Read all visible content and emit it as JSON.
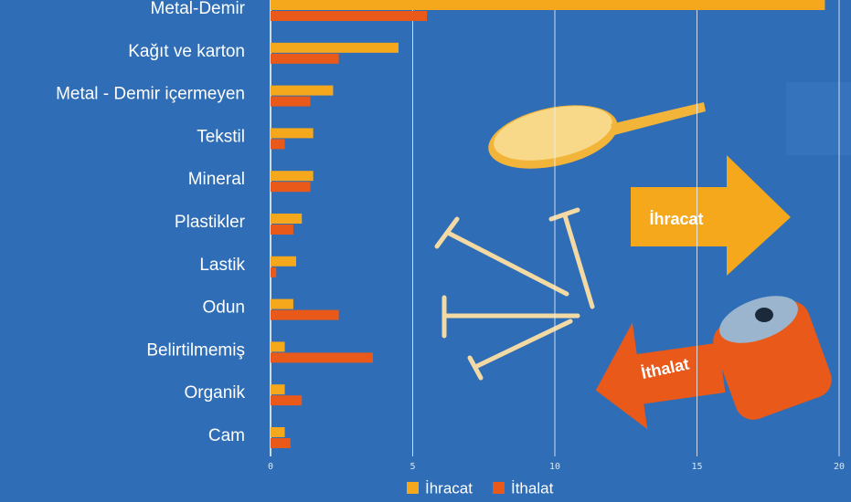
{
  "chart_data": {
    "type": "hbar",
    "categories": [
      "Metal-Demir",
      "Kağıt ve karton",
      "Metal - Demir içermeyen",
      "Tekstil",
      "Mineral",
      "Plastikler",
      "Lastik",
      "Odun",
      "Belirtilmemiş",
      "Organik",
      "Cam"
    ],
    "series": [
      {
        "name": "İhracat",
        "color": "#f5a81c",
        "values": [
          19.5,
          4.5,
          2.2,
          1.5,
          1.5,
          1.1,
          0.9,
          0.8,
          0.5,
          0.5,
          0.5
        ]
      },
      {
        "name": "İthalat",
        "color": "#e8591a",
        "values": [
          5.5,
          2.4,
          1.4,
          0.5,
          1.4,
          0.8,
          0.2,
          2.4,
          3.6,
          1.1,
          0.7
        ]
      }
    ],
    "xlim": [
      0,
      20
    ],
    "xticks": [
      0,
      5,
      10,
      15,
      20
    ],
    "grid": true,
    "annotations": [
      "İhracat",
      "İthalat"
    ]
  }
}
